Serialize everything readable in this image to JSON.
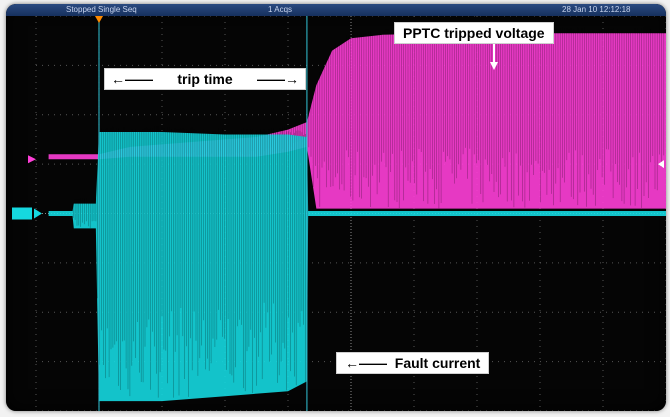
{
  "status_bar": {
    "mode": "Stopped  Single Seq",
    "acquisition": "1 Acqs",
    "timestamp": "28 Jan 10 12:12:18"
  },
  "annotations": {
    "pptc_label": "PPTC tripped voltage",
    "trip_time_label": "trip time",
    "fault_current_label": "Fault current"
  },
  "colors": {
    "screen_background": "#050505",
    "grid": "#6a6a6a",
    "voltage_trace": "#ff3fd8",
    "current_trace": "#15d8e0",
    "cursor": "#2fb7c8",
    "trigger_marker": "#ff8a00"
  },
  "chart_data": {
    "type": "line",
    "title": "",
    "xlabel": "",
    "ylabel": "",
    "grid": true,
    "x_divisions": 10,
    "y_divisions": 8,
    "xlim": [
      0,
      10
    ],
    "ylim": [
      -4,
      4
    ],
    "x_unit": "div",
    "y_unit": "div",
    "cursors_x": [
      1.0,
      4.3
    ],
    "series": [
      {
        "name": "",
        "color": "#ff3fd8",
        "style": "envelope",
        "x": [
          0.2,
          1.0,
          1.5,
          2.5,
          3.5,
          4.0,
          4.3,
          4.45,
          4.7,
          5.0,
          5.5,
          6.5,
          8.0,
          10.0
        ],
        "upper": [
          1.2,
          1.2,
          1.35,
          1.45,
          1.55,
          1.7,
          1.85,
          2.6,
          3.3,
          3.55,
          3.62,
          3.65,
          3.65,
          3.65
        ],
        "lower": [
          1.1,
          1.1,
          1.15,
          1.15,
          1.15,
          1.25,
          1.35,
          0.1,
          0.1,
          0.1,
          0.1,
          0.1,
          0.1,
          0.1
        ]
      },
      {
        "name": "",
        "color": "#15d8e0",
        "style": "envelope",
        "x": [
          0.2,
          0.58,
          0.6,
          0.95,
          1.0,
          2.0,
          3.0,
          4.0,
          4.3,
          4.32,
          10.0
        ],
        "upper": [
          0.05,
          0.05,
          0.2,
          0.2,
          1.65,
          1.65,
          1.6,
          1.6,
          1.55,
          0.05,
          0.05
        ],
        "lower": [
          -0.05,
          -0.05,
          -0.3,
          -0.3,
          -3.8,
          -3.8,
          -3.7,
          -3.6,
          -3.4,
          -0.05,
          -0.05
        ]
      }
    ]
  }
}
